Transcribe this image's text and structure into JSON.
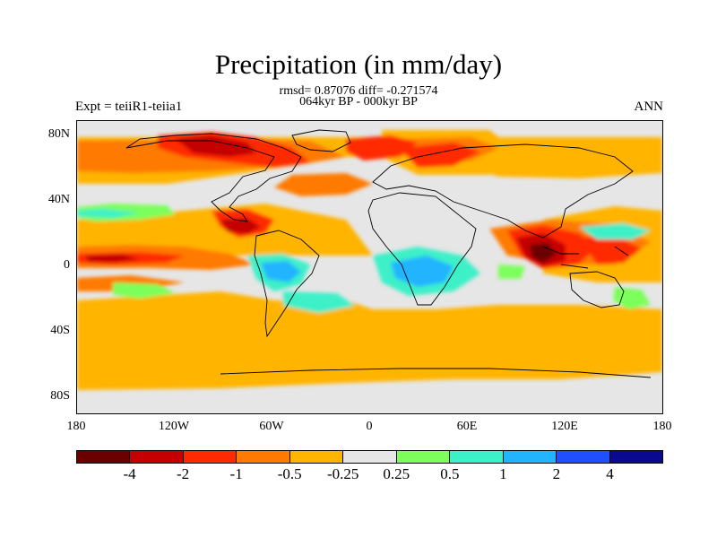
{
  "title": "Precipitation (in mm/day)",
  "stats_line": "rmsd= 0.87076 diff= -0.271574",
  "period_line": "064kyr BP - 000kyr BP",
  "experiment_label": "Expt = teiiR1-teiia1",
  "season_label": "ANN",
  "map": {
    "projection": "cylindrical equidistant",
    "lon_range": [
      -180,
      180
    ],
    "lat_range": [
      -90,
      90
    ],
    "y_tick_labels": [
      "80N",
      "40N",
      "0",
      "40S",
      "80S"
    ],
    "x_tick_labels": [
      "180",
      "120W",
      "60W",
      "0",
      "60E",
      "120E",
      "180"
    ],
    "background_color": "#e6e6e6"
  },
  "colorbar": {
    "colors": [
      "#6b0000",
      "#c40000",
      "#ff2a00",
      "#ff7a00",
      "#ffb400",
      "#e6e6e6",
      "#7cff5a",
      "#3cf0c8",
      "#22b4ff",
      "#1e50ff",
      "#0a0a90"
    ],
    "labels": [
      "-4",
      "-2",
      "-1",
      "-0.5",
      "-0.25",
      "0.25",
      "0.5",
      "1",
      "2",
      "4"
    ]
  }
}
